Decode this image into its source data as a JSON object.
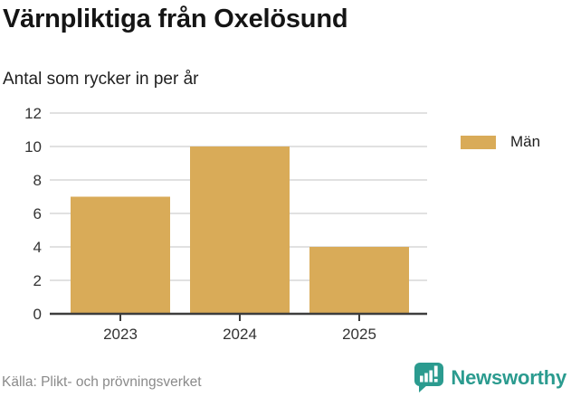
{
  "header": {
    "title": "Värnpliktiga från Oxelösund",
    "subtitle": "Antal som rycker in per år"
  },
  "chart_data": {
    "type": "bar",
    "title": "Värnpliktiga från Oxelösund",
    "subtitle": "Antal som rycker in per år",
    "categories": [
      "2023",
      "2024",
      "2025"
    ],
    "series": [
      {
        "name": "Män",
        "values": [
          7,
          10,
          4
        ],
        "color": "#d9ab58"
      }
    ],
    "xlabel": "",
    "ylabel": "",
    "ylim": [
      0,
      12
    ],
    "yticks": [
      0,
      2,
      4,
      6,
      8,
      10,
      12
    ],
    "grid": "horizontal",
    "legend_position": "right"
  },
  "footer": {
    "source": "Källa: Plikt- och prövningsverket",
    "brand": "Newsworthy"
  },
  "colors": {
    "bar": "#d9ab58",
    "grid": "#e1e1e1",
    "axis": "#3d3d3d",
    "tick_text": "#333333",
    "muted_text": "#8a8a8a",
    "brand_teal": "#2b9b8f"
  }
}
